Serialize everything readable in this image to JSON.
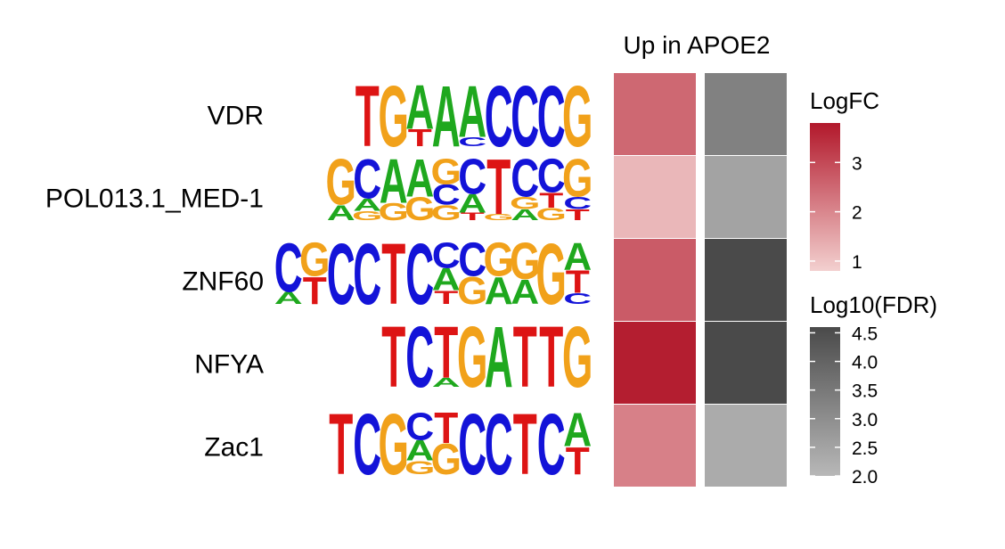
{
  "chart_data": {
    "type": "heatmap",
    "title": "Up in APOE2",
    "rows": [
      "VDR",
      "POL013.1_MED-1",
      "ZNF60",
      "NFYA",
      "Zac1"
    ],
    "motifs": [
      {
        "name": "VDR",
        "columns": [
          [
            [
              "T",
              1.0
            ]
          ],
          [
            [
              "G",
              1.0
            ]
          ],
          [
            [
              "A",
              0.72
            ],
            [
              "T",
              0.28
            ]
          ],
          [
            [
              "A",
              1.0
            ]
          ],
          [
            [
              "A",
              0.85
            ],
            [
              "C",
              0.15
            ]
          ],
          [
            [
              "C",
              1.0
            ]
          ],
          [
            [
              "C",
              1.0
            ]
          ],
          [
            [
              "C",
              1.0
            ]
          ],
          [
            [
              "G",
              1.0
            ]
          ]
        ]
      },
      {
        "name": "POL013.1_MED-1",
        "columns": [
          [
            [
              "G",
              0.75
            ],
            [
              "A",
              0.25
            ]
          ],
          [
            [
              "C",
              0.65
            ],
            [
              "A",
              0.2
            ],
            [
              "G",
              0.15
            ]
          ],
          [
            [
              "A",
              0.72
            ],
            [
              "G",
              0.28
            ]
          ],
          [
            [
              "A",
              0.62
            ],
            [
              "G",
              0.38
            ]
          ],
          [
            [
              "G",
              0.42
            ],
            [
              "C",
              0.33
            ],
            [
              "G",
              0.25
            ]
          ],
          [
            [
              "C",
              0.58
            ],
            [
              "A",
              0.3
            ],
            [
              "T",
              0.12
            ]
          ],
          [
            [
              "T",
              0.9
            ],
            [
              "G",
              0.1
            ]
          ],
          [
            [
              "C",
              0.62
            ],
            [
              "G",
              0.2
            ],
            [
              "A",
              0.18
            ]
          ],
          [
            [
              "C",
              0.55
            ],
            [
              "T",
              0.25
            ],
            [
              "G",
              0.2
            ]
          ],
          [
            [
              "G",
              0.62
            ],
            [
              "C",
              0.2
            ],
            [
              "T",
              0.18
            ]
          ]
        ]
      },
      {
        "name": "ZNF60",
        "columns": [
          [
            [
              "C",
              0.8
            ],
            [
              "A",
              0.2
            ]
          ],
          [
            [
              "G",
              0.55
            ],
            [
              "T",
              0.45
            ]
          ],
          [
            [
              "C",
              1.0
            ]
          ],
          [
            [
              "C",
              1.0
            ]
          ],
          [
            [
              "T",
              1.0
            ]
          ],
          [
            [
              "C",
              1.0
            ]
          ],
          [
            [
              "C",
              0.42
            ],
            [
              "T",
              0.22
            ],
            [
              "A",
              0.36
            ]
          ],
          [
            [
              "C",
              0.55
            ],
            [
              "G",
              0.45
            ]
          ],
          [
            [
              "G",
              0.55
            ],
            [
              "A",
              0.45
            ]
          ],
          [
            [
              "G",
              0.6
            ],
            [
              "A",
              0.4
            ]
          ],
          [
            [
              "G",
              1.0
            ]
          ],
          [
            [
              "A",
              0.45
            ],
            [
              "T",
              0.37
            ],
            [
              "C",
              0.18
            ]
          ]
        ]
      },
      {
        "name": "NFYA",
        "columns": [
          [
            [
              "T",
              1.0
            ]
          ],
          [
            [
              "C",
              1.0
            ]
          ],
          [
            [
              "T",
              0.85
            ],
            [
              "A",
              0.15
            ]
          ],
          [
            [
              "G",
              1.0
            ]
          ],
          [
            [
              "A",
              1.0
            ]
          ],
          [
            [
              "T",
              1.0
            ]
          ],
          [
            [
              "T",
              1.0
            ]
          ],
          [
            [
              "G",
              1.0
            ]
          ]
        ]
      },
      {
        "name": "Zac1",
        "columns": [
          [
            [
              "T",
              1.0
            ]
          ],
          [
            [
              "C",
              1.0
            ]
          ],
          [
            [
              "G",
              1.0
            ]
          ],
          [
            [
              "C",
              0.45
            ],
            [
              "G",
              0.22
            ],
            [
              "A",
              0.33
            ]
          ],
          [
            [
              "G",
              0.5
            ],
            [
              "T",
              0.5
            ]
          ],
          [
            [
              "C",
              1.0
            ]
          ],
          [
            [
              "C",
              1.0
            ]
          ],
          [
            [
              "T",
              1.0
            ]
          ],
          [
            [
              "C",
              1.0
            ]
          ],
          [
            [
              "T",
              0.45
            ],
            [
              "A",
              0.55
            ]
          ]
        ]
      }
    ],
    "columns": [
      "LogFC",
      "Log10(FDR)"
    ],
    "logfc": [
      2.5,
      1.2,
      2.7,
      3.7,
      2.1
    ],
    "log10_fdr": [
      3.3,
      2.5,
      4.6,
      4.6,
      2.3
    ],
    "logfc_scale": {
      "min": 0.8,
      "max": 3.8,
      "low": "#f3d0cf",
      "high": "#b2182b",
      "ticks": [
        1,
        2,
        3
      ]
    },
    "fdr_scale": {
      "min": 2.0,
      "max": 4.6,
      "low": "#b8b8b8",
      "high": "#4a4a4a",
      "ticks": [
        2.0,
        2.5,
        3.0,
        3.5,
        4.0,
        4.5
      ]
    },
    "legend": [
      {
        "title": "LogFC"
      },
      {
        "title": "Log10(FDR)"
      }
    ],
    "legend_position": "right",
    "base_colors": {
      "A": "#1fa81e",
      "C": "#1313d8",
      "G": "#f1a11a",
      "T": "#dd1414"
    },
    "tick_labels_logfc": [
      "3",
      "2",
      "1"
    ],
    "tick_labels_fdr": [
      "4.5",
      "4.0",
      "3.5",
      "3.0",
      "2.5",
      "2.0"
    ]
  }
}
